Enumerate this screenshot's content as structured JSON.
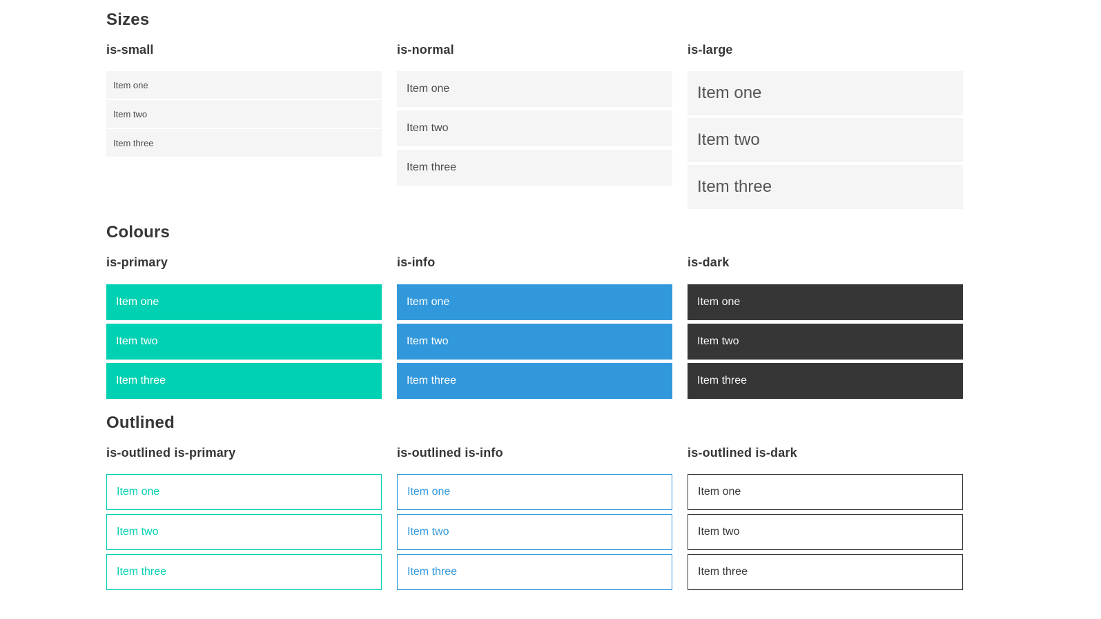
{
  "colors": {
    "primary": "#00d1b2",
    "info": "#3298dc",
    "dark": "#363636",
    "item_background": "#f5f5f5",
    "heading_text": "#363636",
    "item_text": "#4a4a4a",
    "on_color_text": "#ffffff",
    "page_background": "#ffffff"
  },
  "sections": [
    {
      "title": "Sizes",
      "columns": [
        {
          "label": "is-small",
          "items": [
            "Item one",
            "Item two",
            "Item three"
          ]
        },
        {
          "label": "is-normal",
          "items": [
            "Item one",
            "Item two",
            "Item three"
          ]
        },
        {
          "label": "is-large",
          "items": [
            "Item one",
            "Item two",
            "Item three"
          ]
        }
      ]
    },
    {
      "title": "Colours",
      "columns": [
        {
          "label": "is-primary",
          "items": [
            "Item one",
            "Item two",
            "Item three"
          ]
        },
        {
          "label": "is-info",
          "items": [
            "Item one",
            "Item two",
            "Item three"
          ]
        },
        {
          "label": "is-dark",
          "items": [
            "Item one",
            "Item two",
            "Item three"
          ]
        }
      ]
    },
    {
      "title": "Outlined",
      "columns": [
        {
          "label": "is-outlined is-primary",
          "items": [
            "Item one",
            "Item two",
            "Item three"
          ]
        },
        {
          "label": "is-outlined is-info",
          "items": [
            "Item one",
            "Item two",
            "Item three"
          ]
        },
        {
          "label": "is-outlined is-dark",
          "items": [
            "Item one",
            "Item two",
            "Item three"
          ]
        }
      ]
    }
  ]
}
